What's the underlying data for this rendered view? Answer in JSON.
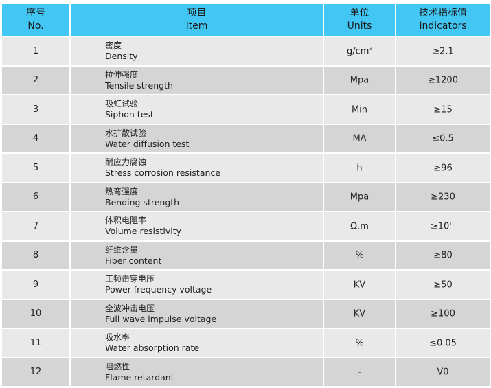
{
  "header": {
    "no_zh": "序号",
    "no_en": "No.",
    "item_zh": "项目",
    "item_en": "Item",
    "units_zh": "单位",
    "units_en": "Units",
    "ind_zh": "技术指标值",
    "ind_en": "Indicators"
  },
  "colors": {
    "header_bg": "#42c6f3",
    "row_light": "#e9e9ea",
    "row_dark": "#d5d5d6"
  },
  "rows": [
    {
      "no": "1",
      "zh": "密度",
      "en": "Density",
      "unit": "g/cm",
      "unit_sup": "3",
      "value": "≥2.1",
      "value_sup": ""
    },
    {
      "no": "2",
      "zh": "拉伸强度",
      "en": "Tensile strength",
      "unit": "Mpa",
      "unit_sup": "",
      "value": "≥1200",
      "value_sup": ""
    },
    {
      "no": "3",
      "zh": "吸虹试验",
      "en": "Siphon test",
      "unit": "Min",
      "unit_sup": "",
      "value": "≥15",
      "value_sup": ""
    },
    {
      "no": "4",
      "zh": "水扩散试验",
      "en": "Water diffusion test",
      "unit": "MA",
      "unit_sup": "",
      "value": "≤0.5",
      "value_sup": ""
    },
    {
      "no": "5",
      "zh": "耐应力腐蚀",
      "en": "Stress corrosion resistance",
      "unit": "h",
      "unit_sup": "",
      "value": "≥96",
      "value_sup": ""
    },
    {
      "no": "6",
      "zh": "热弯强度",
      "en": "Bending strength",
      "unit": "Mpa",
      "unit_sup": "",
      "value": "≥230",
      "value_sup": ""
    },
    {
      "no": "7",
      "zh": "体积电阻率",
      "en": "Volume resistivity",
      "unit": "Ω.m",
      "unit_sup": "",
      "value": "≥10",
      "value_sup": "10"
    },
    {
      "no": "8",
      "zh": "纤维含量",
      "en": "Fiber content",
      "unit": "%",
      "unit_sup": "",
      "value": "≥80",
      "value_sup": ""
    },
    {
      "no": "9",
      "zh": "工频击穿电压",
      "en": "Power frequency voltage",
      "unit": "KV",
      "unit_sup": "",
      "value": "≥50",
      "value_sup": ""
    },
    {
      "no": "10",
      "zh": "全波冲击电压",
      "en": "Full wave impulse voltage",
      "unit": "KV",
      "unit_sup": "",
      "value": "≥100",
      "value_sup": ""
    },
    {
      "no": "11",
      "zh": "吸水率",
      "en": "Water absorption rate",
      "unit": "%",
      "unit_sup": "",
      "value": "≤0.05",
      "value_sup": ""
    },
    {
      "no": "12",
      "zh": "阻燃性",
      "en": "Flame retardant",
      "unit": "-",
      "unit_sup": "",
      "value": "V0",
      "value_sup": ""
    }
  ]
}
